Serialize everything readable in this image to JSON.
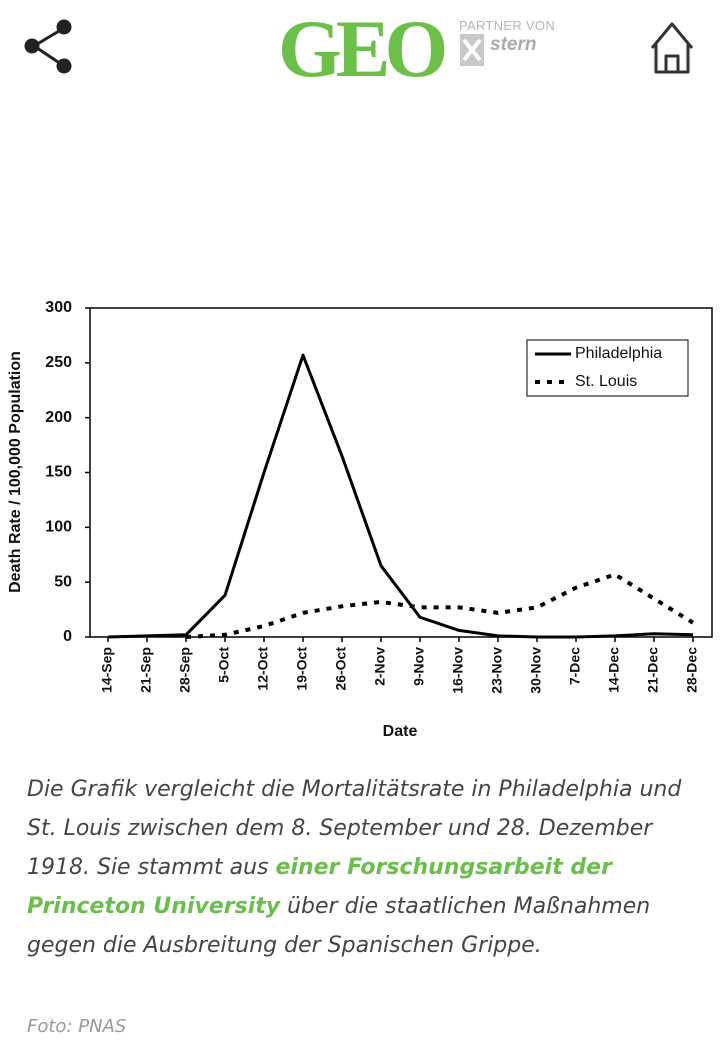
{
  "header": {
    "logo": "GEO",
    "partner": "PARTNER VON",
    "partner_logo": "stern"
  },
  "chart_data": {
    "type": "line",
    "ylabel": "Death Rate / 100,000 Population",
    "xlabel": "Date",
    "categories": [
      "14-Sep",
      "21-Sep",
      "28-Sep",
      "5-Oct",
      "12-Oct",
      "19-Oct",
      "26-Oct",
      "2-Nov",
      "9-Nov",
      "16-Nov",
      "23-Nov",
      "30-Nov",
      "7-Dec",
      "14-Dec",
      "21-Dec",
      "28-Dec"
    ],
    "series": [
      {
        "name": "Philadelphia",
        "color": "#000000",
        "style": "solid",
        "values": [
          0,
          1,
          2,
          38,
          150,
          257,
          165,
          65,
          18,
          6,
          1,
          0,
          0,
          1,
          3,
          2
        ]
      },
      {
        "name": "St. Louis",
        "color": "#000000",
        "style": "dotted",
        "values": [
          null,
          null,
          0,
          2,
          10,
          22,
          28,
          32,
          27,
          27,
          22,
          27,
          45,
          57,
          35,
          13
        ]
      }
    ],
    "ylim": [
      0,
      300
    ],
    "yticks": [
      0,
      50,
      100,
      150,
      200,
      250,
      300
    ],
    "legend": "upper right",
    "grid": false
  },
  "caption": {
    "before": "Die Grafik vergleicht die Mortalitätsrate in Philadelphia und St. Louis zwischen dem 8. September und 28. Dezember 1918. Sie stammt aus ",
    "link": "einer Forschungsarbeit der Princeton University",
    "after": " über die staatlichen Maßnahmen gegen die Ausbreitung der Spanischen Grippe."
  },
  "credit": "Foto: PNAS"
}
